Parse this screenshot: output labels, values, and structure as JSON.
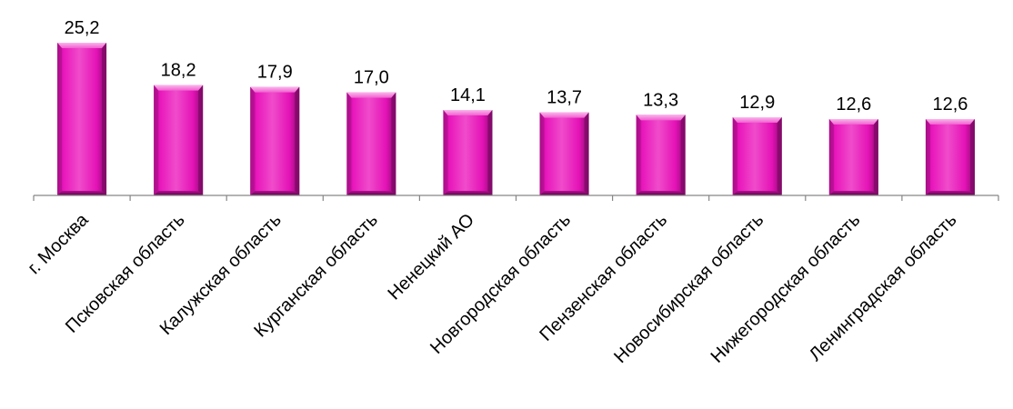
{
  "colors": {
    "bar_fill": "#e611b8",
    "bar_highlight": "#f58be0",
    "bar_shadow": "#6a0a55",
    "axis": "#868686",
    "text": "#000000"
  },
  "chart_data": {
    "type": "bar",
    "title": "",
    "xlabel": "",
    "ylabel": "",
    "categories": [
      "г. Москва",
      "Псковская область",
      "Калужская область",
      "Курганская область",
      "Ненецкий АО",
      "Новгородская  область",
      "Пензенская область",
      "Новосибирская область",
      "Нижегородская область",
      "Ленинградская область"
    ],
    "values": [
      25.2,
      18.2,
      17.9,
      17.0,
      14.1,
      13.7,
      13.3,
      12.9,
      12.6,
      12.6
    ],
    "value_labels": [
      "25,2",
      "18,2",
      "17,9",
      "17,0",
      "14,1",
      "13,7",
      "13,3",
      "12,9",
      "12,6",
      "12,6"
    ],
    "ylim": [
      0,
      25.2
    ],
    "grid": false,
    "legend": "none"
  }
}
